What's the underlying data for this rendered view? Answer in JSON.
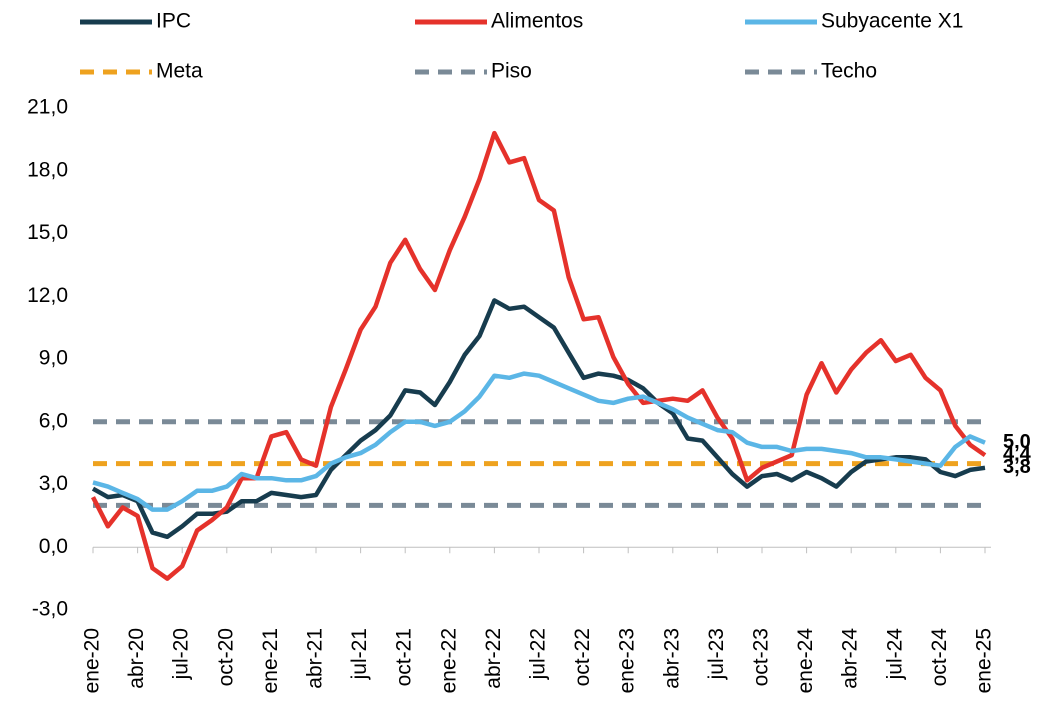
{
  "chart_data": {
    "type": "line",
    "categories": [
      "ene-20",
      null,
      null,
      "abr-20",
      null,
      null,
      "jul-20",
      null,
      null,
      "oct-20",
      null,
      null,
      "ene-21",
      null,
      null,
      "abr-21",
      null,
      null,
      "jul-21",
      null,
      null,
      "oct-21",
      null,
      null,
      "ene-22",
      null,
      null,
      "abr-22",
      null,
      null,
      "jul-22",
      null,
      null,
      "oct-22",
      null,
      null,
      "ene-23",
      null,
      null,
      "abr-23",
      null,
      null,
      "jul-23",
      null,
      null,
      "oct-23",
      null,
      null,
      "ene-24",
      null,
      null,
      "abr-24",
      null,
      null,
      "jul-24",
      null,
      null,
      "oct-24",
      null,
      null,
      "ene-25"
    ],
    "series": [
      {
        "name": "IPC",
        "color": "#173c4e",
        "dashed": false,
        "end_label": "3,8",
        "end_color": "#173a6b",
        "values": [
          2.8,
          2.4,
          2.5,
          2.2,
          0.7,
          0.5,
          1.0,
          1.6,
          1.6,
          1.7,
          2.2,
          2.2,
          2.6,
          2.5,
          2.4,
          2.5,
          3.7,
          4.4,
          5.1,
          5.6,
          6.3,
          7.5,
          7.4,
          6.8,
          7.9,
          9.2,
          10.1,
          11.8,
          11.4,
          11.5,
          11.0,
          10.5,
          9.3,
          8.1,
          8.3,
          8.2,
          8.0,
          7.6,
          6.9,
          6.4,
          5.2,
          5.1,
          4.3,
          3.5,
          2.9,
          3.4,
          3.5,
          3.2,
          3.6,
          3.3,
          2.9,
          3.6,
          4.1,
          4.2,
          4.3,
          4.3,
          4.2,
          3.6,
          3.4,
          3.7,
          3.8
        ]
      },
      {
        "name": "Alimentos",
        "color": "#e5322b",
        "dashed": false,
        "end_label": "4,4",
        "end_color": "#e5322b",
        "values": [
          2.4,
          1.0,
          1.9,
          1.5,
          -1.0,
          -1.5,
          -0.9,
          0.8,
          1.3,
          1.9,
          3.3,
          3.3,
          5.3,
          5.5,
          4.2,
          3.9,
          6.7,
          8.5,
          10.4,
          11.5,
          13.6,
          14.7,
          13.3,
          12.3,
          14.2,
          15.8,
          17.6,
          19.8,
          18.4,
          18.6,
          16.6,
          16.1,
          12.9,
          10.9,
          11.0,
          9.1,
          7.8,
          6.9,
          7.0,
          7.1,
          7.0,
          7.5,
          6.2,
          5.2,
          3.2,
          3.8,
          4.1,
          4.4,
          7.3,
          8.8,
          7.4,
          8.5,
          9.3,
          9.9,
          8.9,
          9.2,
          8.1,
          7.5,
          5.8,
          4.9,
          4.4
        ]
      },
      {
        "name": "Subyacente X1",
        "color": "#5bb6e6",
        "dashed": false,
        "end_label": "5,0",
        "end_color": "#2fa8e0",
        "values": [
          3.1,
          2.9,
          2.6,
          2.3,
          1.8,
          1.8,
          2.2,
          2.7,
          2.7,
          2.9,
          3.5,
          3.3,
          3.3,
          3.2,
          3.2,
          3.4,
          4.0,
          4.3,
          4.5,
          4.9,
          5.5,
          6.0,
          6.0,
          5.8,
          6.0,
          6.5,
          7.2,
          8.2,
          8.1,
          8.3,
          8.2,
          7.9,
          7.6,
          7.3,
          7.0,
          6.9,
          7.1,
          7.2,
          6.9,
          6.6,
          6.2,
          5.9,
          5.6,
          5.5,
          5.0,
          4.8,
          4.8,
          4.6,
          4.7,
          4.7,
          4.6,
          4.5,
          4.3,
          4.3,
          4.2,
          4.1,
          4.0,
          3.9,
          4.8,
          5.3,
          5.0
        ]
      },
      {
        "name": "Meta",
        "color": "#eea21f",
        "dashed": true,
        "values": [
          4,
          4,
          4,
          4,
          4,
          4,
          4,
          4,
          4,
          4,
          4,
          4,
          4,
          4,
          4,
          4,
          4,
          4,
          4,
          4,
          4,
          4,
          4,
          4,
          4,
          4,
          4,
          4,
          4,
          4,
          4,
          4,
          4,
          4,
          4,
          4,
          4,
          4,
          4,
          4,
          4,
          4,
          4,
          4,
          4,
          4,
          4,
          4,
          4,
          4,
          4,
          4,
          4,
          4,
          4,
          4,
          4,
          4,
          4,
          4,
          4
        ]
      },
      {
        "name": "Piso",
        "color": "#7a8a97",
        "dashed": true,
        "values": [
          2,
          2,
          2,
          2,
          2,
          2,
          2,
          2,
          2,
          2,
          2,
          2,
          2,
          2,
          2,
          2,
          2,
          2,
          2,
          2,
          2,
          2,
          2,
          2,
          2,
          2,
          2,
          2,
          2,
          2,
          2,
          2,
          2,
          2,
          2,
          2,
          2,
          2,
          2,
          2,
          2,
          2,
          2,
          2,
          2,
          2,
          2,
          2,
          2,
          2,
          2,
          2,
          2,
          2,
          2,
          2,
          2,
          2,
          2,
          2,
          2
        ]
      },
      {
        "name": "Techo",
        "color": "#7a8a97",
        "dashed": true,
        "values": [
          6,
          6,
          6,
          6,
          6,
          6,
          6,
          6,
          6,
          6,
          6,
          6,
          6,
          6,
          6,
          6,
          6,
          6,
          6,
          6,
          6,
          6,
          6,
          6,
          6,
          6,
          6,
          6,
          6,
          6,
          6,
          6,
          6,
          6,
          6,
          6,
          6,
          6,
          6,
          6,
          6,
          6,
          6,
          6,
          6,
          6,
          6,
          6,
          6,
          6,
          6,
          6,
          6,
          6,
          6,
          6,
          6,
          6,
          6,
          6,
          6
        ]
      }
    ],
    "ylim": [
      -3,
      21
    ],
    "yticks": [
      {
        "value": -3,
        "label": "-3,0"
      },
      {
        "value": 0,
        "label": "0,0"
      },
      {
        "value": 3,
        "label": "3,0"
      },
      {
        "value": 6,
        "label": "6,0"
      },
      {
        "value": 9,
        "label": "9,0"
      },
      {
        "value": 12,
        "label": "12,0"
      },
      {
        "value": 15,
        "label": "15,0"
      },
      {
        "value": 18,
        "label": "18,0"
      },
      {
        "value": 21,
        "label": "21,0"
      }
    ],
    "grid": false,
    "legend": "top"
  }
}
